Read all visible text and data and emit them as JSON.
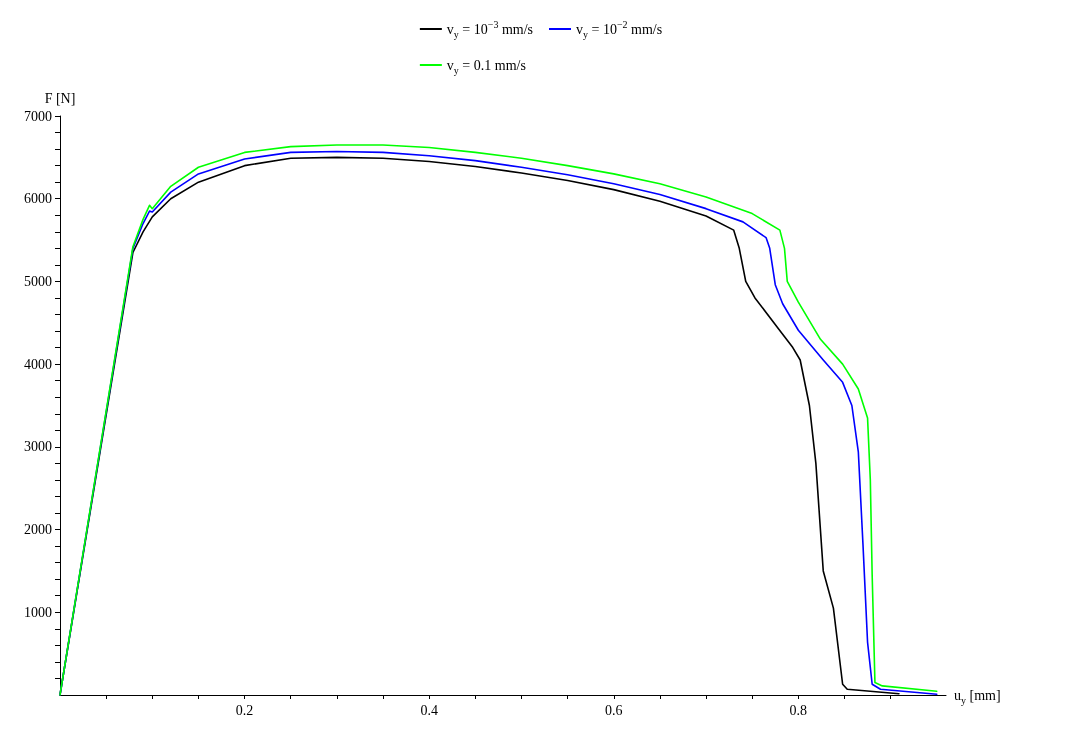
{
  "chart_data": {
    "type": "line",
    "xlabel": "u$_{y}$ [mm]",
    "ylabel": "F [N]",
    "legend": "top",
    "grid": false,
    "marker": "none",
    "line_style": "solid",
    "xlim": [
      0,
      0.96
    ],
    "ylim": [
      0,
      7000
    ],
    "xticks": [
      {
        "value": 0.05,
        "label": null
      },
      {
        "value": 0.1,
        "label": null
      },
      {
        "value": 0.15,
        "label": null
      },
      0.2,
      {
        "value": 0.25,
        "label": null
      },
      {
        "value": 0.3,
        "label": null
      },
      {
        "value": 0.35,
        "label": null
      },
      0.4,
      {
        "value": 0.45,
        "label": null
      },
      {
        "value": 0.5,
        "label": null
      },
      {
        "value": 0.55,
        "label": null
      },
      0.6,
      {
        "value": 0.65,
        "label": null
      },
      {
        "value": 0.7,
        "label": null
      },
      {
        "value": 0.75,
        "label": null
      },
      0.8,
      {
        "value": 0.85,
        "label": null
      },
      {
        "value": 0.9,
        "label": null
      }
    ],
    "yticks": [
      {
        "value": 200,
        "label": null
      },
      {
        "value": 400,
        "label": null
      },
      {
        "value": 600,
        "label": null
      },
      {
        "value": 800,
        "label": null
      },
      1000,
      {
        "value": 1200,
        "label": null
      },
      {
        "value": 1400,
        "label": null
      },
      {
        "value": 1600,
        "label": null
      },
      {
        "value": 1800,
        "label": null
      },
      2000,
      {
        "value": 2200,
        "label": null
      },
      {
        "value": 2400,
        "label": null
      },
      {
        "value": 2600,
        "label": null
      },
      {
        "value": 2800,
        "label": null
      },
      3000,
      {
        "value": 3200,
        "label": null
      },
      {
        "value": 3400,
        "label": null
      },
      {
        "value": 3600,
        "label": null
      },
      {
        "value": 3800,
        "label": null
      },
      4000,
      {
        "value": 4200,
        "label": null
      },
      {
        "value": 4400,
        "label": null
      },
      {
        "value": 4600,
        "label": null
      },
      {
        "value": 4800,
        "label": null
      },
      5000,
      {
        "value": 5200,
        "label": null
      },
      {
        "value": 5400,
        "label": null
      },
      {
        "value": 5600,
        "label": null
      },
      {
        "value": 5800,
        "label": null
      },
      6000,
      {
        "value": 6200,
        "label": null
      },
      {
        "value": 6400,
        "label": null
      },
      {
        "value": 6600,
        "label": null
      },
      {
        "value": 6800,
        "label": null
      },
      7000
    ],
    "series": [
      {
        "name": "v$_{y}$ = 10$^{−3}$ mm/s",
        "color": "#000000",
        "x": [
          0,
          0.079,
          0.09,
          0.1,
          0.12,
          0.15,
          0.2,
          0.25,
          0.3,
          0.35,
          0.4,
          0.45,
          0.5,
          0.55,
          0.6,
          0.65,
          0.7,
          0.73,
          0.736,
          0.743,
          0.753,
          0.777,
          0.794,
          0.802,
          0.812,
          0.819,
          0.827,
          0.838,
          0.848,
          0.853,
          0.909
        ],
        "values": [
          0,
          5350,
          5600,
          5780,
          6000,
          6200,
          6400,
          6490,
          6500,
          6490,
          6450,
          6390,
          6310,
          6220,
          6110,
          5970,
          5790,
          5620,
          5400,
          5000,
          4800,
          4450,
          4200,
          4050,
          3500,
          2800,
          1500,
          1050,
          130,
          70,
          15
        ]
      },
      {
        "name": "v$_{y}$ = 10$^{−2}$ mm/s",
        "color": "#0000ff",
        "x": [
          0,
          0.079,
          0.09,
          0.097,
          0.1,
          0.12,
          0.15,
          0.2,
          0.25,
          0.3,
          0.35,
          0.4,
          0.45,
          0.5,
          0.55,
          0.6,
          0.65,
          0.7,
          0.74,
          0.765,
          0.769,
          0.775,
          0.783,
          0.8,
          0.827,
          0.848,
          0.858,
          0.865,
          0.87,
          0.875,
          0.88,
          0.889,
          0.95
        ],
        "values": [
          0,
          5400,
          5700,
          5850,
          5840,
          6080,
          6300,
          6480,
          6560,
          6570,
          6560,
          6520,
          6460,
          6380,
          6290,
          6180,
          6050,
          5880,
          5720,
          5530,
          5400,
          4960,
          4730,
          4410,
          4050,
          3780,
          3500,
          2940,
          1830,
          640,
          130,
          70,
          10
        ]
      },
      {
        "name": "v$_{y}$ = 0.1 mm/s",
        "color": "#00ff00",
        "x": [
          0,
          0.079,
          0.09,
          0.097,
          0.1,
          0.12,
          0.15,
          0.2,
          0.25,
          0.3,
          0.35,
          0.4,
          0.45,
          0.5,
          0.55,
          0.6,
          0.65,
          0.7,
          0.75,
          0.78,
          0.785,
          0.788,
          0.8,
          0.824,
          0.848,
          0.865,
          0.875,
          0.878,
          0.88,
          0.883,
          0.891,
          0.95
        ],
        "values": [
          0,
          5420,
          5750,
          5920,
          5880,
          6150,
          6380,
          6560,
          6630,
          6650,
          6650,
          6620,
          6560,
          6490,
          6400,
          6300,
          6180,
          6020,
          5820,
          5620,
          5400,
          5000,
          4750,
          4300,
          4000,
          3700,
          3350,
          2600,
          1450,
          150,
          110,
          45
        ]
      }
    ]
  }
}
